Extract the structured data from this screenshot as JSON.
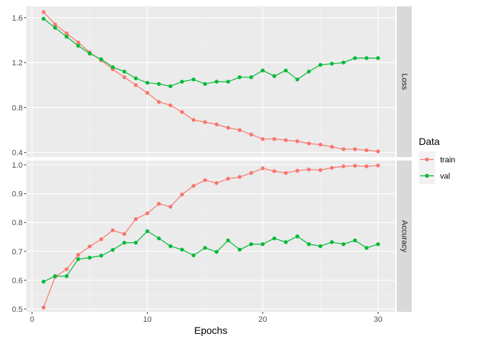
{
  "chart_data": {
    "type": "line",
    "xlabel": "Epochs",
    "x_ticks": [
      0,
      10,
      20,
      30
    ],
    "xlim": [
      -0.5,
      31.5
    ],
    "legend": {
      "title": "Data",
      "position": "right",
      "entries": [
        {
          "name": "train",
          "color": "#F8766D"
        },
        {
          "name": "val",
          "color": "#00BA38"
        }
      ]
    },
    "grid": true,
    "facets": [
      {
        "label": "Loss",
        "ylim": [
          0.36,
          1.7
        ],
        "y_ticks": [
          0.4,
          0.8,
          1.2,
          1.6
        ],
        "y_tick_labels": [
          "0.4",
          "0.8",
          "1.2",
          "1.6"
        ],
        "series": [
          {
            "name": "train",
            "color": "#F8766D",
            "x": [
              1,
              2,
              3,
              4,
              5,
              6,
              7,
              8,
              9,
              10,
              11,
              12,
              13,
              14,
              15,
              16,
              17,
              18,
              19,
              20,
              21,
              22,
              23,
              24,
              25,
              26,
              27,
              28,
              29,
              30
            ],
            "values": [
              1.65,
              1.54,
              1.46,
              1.38,
              1.29,
              1.22,
              1.14,
              1.07,
              1.0,
              0.93,
              0.85,
              0.82,
              0.76,
              0.69,
              0.67,
              0.65,
              0.62,
              0.6,
              0.56,
              0.52,
              0.52,
              0.51,
              0.5,
              0.48,
              0.47,
              0.45,
              0.43,
              0.43,
              0.42,
              0.41
            ]
          },
          {
            "name": "val",
            "color": "#00BA38",
            "x": [
              1,
              2,
              3,
              4,
              5,
              6,
              7,
              8,
              9,
              10,
              11,
              12,
              13,
              14,
              15,
              16,
              17,
              18,
              19,
              20,
              21,
              22,
              23,
              24,
              25,
              26,
              27,
              28,
              29,
              30
            ],
            "values": [
              1.59,
              1.51,
              1.43,
              1.35,
              1.28,
              1.23,
              1.16,
              1.12,
              1.06,
              1.02,
              1.01,
              0.99,
              1.03,
              1.05,
              1.01,
              1.03,
              1.03,
              1.07,
              1.07,
              1.13,
              1.08,
              1.13,
              1.05,
              1.12,
              1.18,
              1.19,
              1.2,
              1.24,
              1.24,
              1.24
            ]
          }
        ]
      },
      {
        "label": "Accuracy",
        "ylim": [
          0.49,
          1.015
        ],
        "y_ticks": [
          0.5,
          0.6,
          0.7,
          0.8,
          0.9,
          1.0
        ],
        "y_tick_labels": [
          "0.5",
          "0.6",
          "0.7",
          "0.8",
          "0.9",
          "1.0"
        ],
        "series": [
          {
            "name": "train",
            "color": "#F8766D",
            "x": [
              1,
              2,
              3,
              4,
              5,
              6,
              7,
              8,
              9,
              10,
              11,
              12,
              13,
              14,
              15,
              16,
              17,
              18,
              19,
              20,
              21,
              22,
              23,
              24,
              25,
              26,
              27,
              28,
              29,
              30
            ],
            "values": [
              0.505,
              0.612,
              0.638,
              0.688,
              0.717,
              0.742,
              0.773,
              0.76,
              0.812,
              0.832,
              0.865,
              0.855,
              0.897,
              0.927,
              0.947,
              0.937,
              0.952,
              0.958,
              0.972,
              0.988,
              0.978,
              0.972,
              0.98,
              0.984,
              0.982,
              0.99,
              0.995,
              0.997,
              0.995,
              0.998
            ]
          },
          {
            "name": "val",
            "color": "#00BA38",
            "x": [
              1,
              2,
              3,
              4,
              5,
              6,
              7,
              8,
              9,
              10,
              11,
              12,
              13,
              14,
              15,
              16,
              17,
              18,
              19,
              20,
              21,
              22,
              23,
              24,
              25,
              26,
              27,
              28,
              29,
              30
            ],
            "values": [
              0.595,
              0.614,
              0.614,
              0.673,
              0.678,
              0.685,
              0.705,
              0.73,
              0.73,
              0.77,
              0.745,
              0.718,
              0.706,
              0.686,
              0.712,
              0.698,
              0.738,
              0.706,
              0.725,
              0.725,
              0.745,
              0.732,
              0.752,
              0.725,
              0.718,
              0.732,
              0.725,
              0.738,
              0.712,
              0.725
            ]
          }
        ]
      }
    ]
  }
}
